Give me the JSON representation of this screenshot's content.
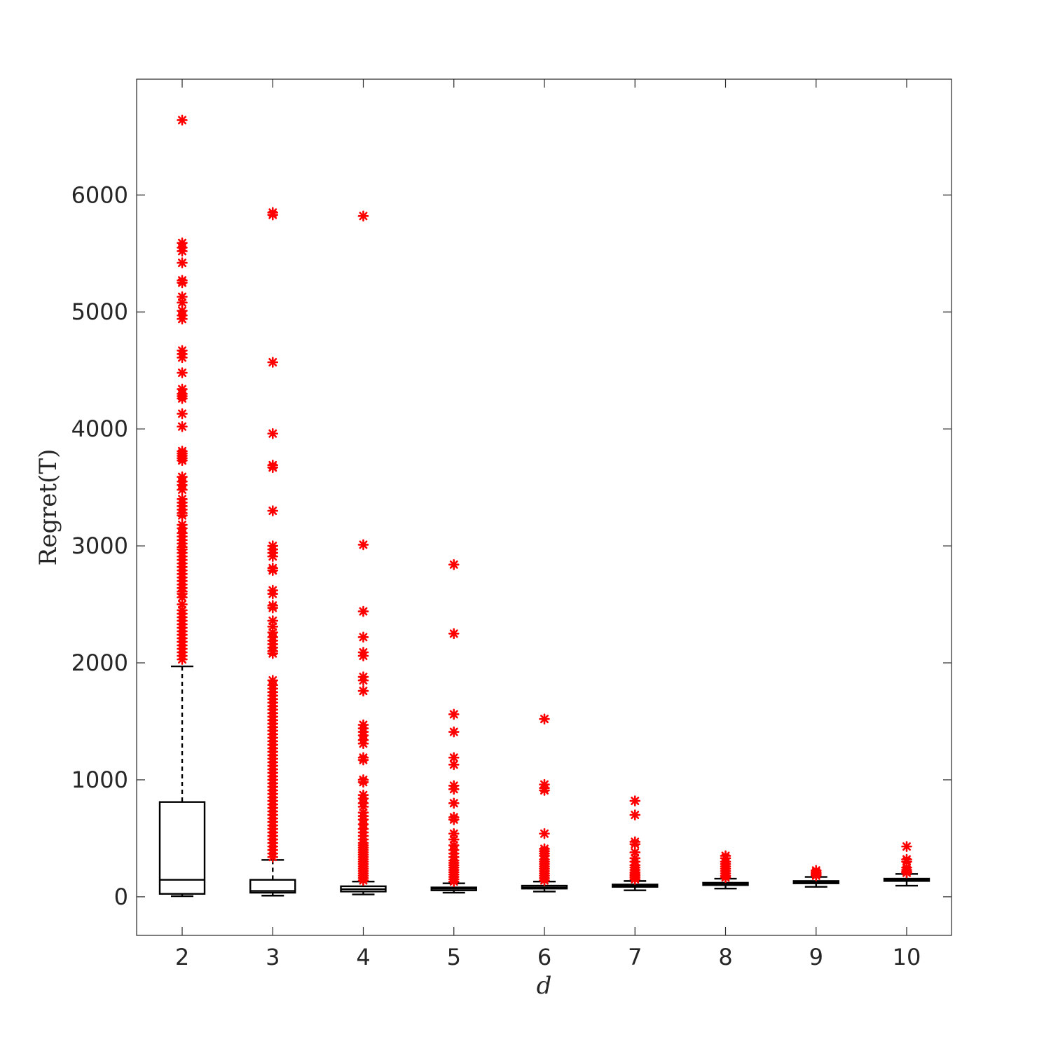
{
  "chart_data": {
    "type": "box",
    "xlabel": "d",
    "ylabel": "Regret(T)",
    "categories": [
      "2",
      "3",
      "4",
      "5",
      "6",
      "7",
      "8",
      "9",
      "10"
    ],
    "ylim": [
      -330,
      6990
    ],
    "yticks": [
      0,
      1000,
      2000,
      3000,
      4000,
      5000,
      6000
    ],
    "ytick_labels": [
      "0",
      "1000",
      "2000",
      "3000",
      "4000",
      "5000",
      "6000"
    ],
    "grid": false,
    "legend": "none",
    "box_color": "#000000",
    "outlier_color": "#ff0000",
    "outlier_marker": "asterisk",
    "boxes": [
      {
        "category": "2",
        "whisker_low": 5,
        "q1": 25,
        "median": 145,
        "q3": 810,
        "whisker_high": 1970,
        "outliers": [
          6640,
          5590,
          5550,
          5520,
          5420,
          5270,
          5250,
          5130,
          5080,
          5010,
          4970,
          4940,
          4670,
          4640,
          4610,
          4480,
          4340,
          4300,
          4280,
          4260,
          4130,
          4020,
          3810,
          3790,
          3770,
          3750,
          3730,
          3590,
          3550,
          3520,
          3480,
          3400,
          3370,
          3340,
          3310,
          3280,
          3260,
          3180,
          3150,
          3110,
          3080,
          3050,
          3020,
          2990,
          2970,
          2940,
          2910,
          2880,
          2850,
          2820,
          2790,
          2760,
          2730,
          2700,
          2670,
          2640,
          2610,
          2590,
          2560,
          2500,
          2450,
          2420,
          2390,
          2360,
          2330,
          2300,
          2270,
          2240,
          2210,
          2180,
          2150,
          2120,
          2090,
          2060,
          2030
        ]
      },
      {
        "category": "3",
        "whisker_low": 10,
        "q1": 35,
        "median": 50,
        "q3": 145,
        "whisker_high": 315,
        "outliers": [
          5850,
          5830,
          4570,
          3960,
          3690,
          3670,
          3300,
          3000,
          2970,
          2940,
          2910,
          2810,
          2790,
          2620,
          2590,
          2490,
          2470,
          2360,
          2310,
          2260,
          2220,
          2190,
          2160,
          2130,
          2100,
          2080,
          1850,
          1810,
          1780,
          1750,
          1720,
          1690,
          1660,
          1630,
          1600,
          1570,
          1540,
          1510,
          1480,
          1450,
          1420,
          1390,
          1360,
          1330,
          1300,
          1270,
          1240,
          1210,
          1180,
          1150,
          1120,
          1090,
          1060,
          1030,
          1000,
          970,
          940,
          910,
          880,
          850,
          820,
          790,
          760,
          730,
          700,
          670,
          640,
          610,
          580,
          550,
          520,
          490,
          460,
          430,
          400,
          370,
          340
        ]
      },
      {
        "category": "4",
        "whisker_low": 20,
        "q1": 45,
        "median": 65,
        "q3": 90,
        "whisker_high": 130,
        "outliers": [
          5820,
          3010,
          2440,
          2220,
          2090,
          2060,
          1880,
          1850,
          1760,
          1470,
          1440,
          1410,
          1380,
          1340,
          1310,
          1190,
          1170,
          1000,
          980,
          870,
          840,
          800,
          770,
          720,
          690,
          660,
          620,
          580,
          550,
          520,
          490,
          460,
          440,
          420,
          400,
          380,
          360,
          340,
          320,
          300,
          280,
          260,
          240,
          220,
          200,
          180,
          160,
          140
        ]
      },
      {
        "category": "5",
        "whisker_low": 35,
        "q1": 55,
        "median": 70,
        "q3": 80,
        "whisker_high": 115,
        "outliers": [
          2840,
          2250,
          1560,
          1410,
          1190,
          1130,
          950,
          920,
          800,
          680,
          660,
          540,
          490,
          440,
          400,
          370,
          340,
          310,
          290,
          270,
          250,
          230,
          210,
          190,
          170,
          150,
          130
        ]
      },
      {
        "category": "6",
        "whisker_low": 45,
        "q1": 70,
        "median": 80,
        "q3": 95,
        "whisker_high": 130,
        "outliers": [
          1520,
          960,
          930,
          910,
          540,
          410,
          390,
          370,
          350,
          320,
          300,
          280,
          260,
          240,
          220,
          200,
          180,
          160,
          140
        ]
      },
      {
        "category": "7",
        "whisker_low": 55,
        "q1": 85,
        "median": 95,
        "q3": 105,
        "whisker_high": 135,
        "outliers": [
          820,
          700,
          470,
          450,
          380,
          330,
          300,
          270,
          250,
          230,
          210,
          195,
          180,
          165,
          150
        ]
      },
      {
        "category": "8",
        "whisker_low": 70,
        "q1": 100,
        "median": 110,
        "q3": 120,
        "whisker_high": 155,
        "outliers": [
          350,
          330,
          300,
          280,
          260,
          240,
          220,
          200,
          180,
          165
        ]
      },
      {
        "category": "9",
        "whisker_low": 85,
        "q1": 115,
        "median": 125,
        "q3": 135,
        "whisker_high": 170,
        "outliers": [
          225,
          210,
          200,
          190,
          180
        ]
      },
      {
        "category": "10",
        "whisker_low": 95,
        "q1": 135,
        "median": 145,
        "q3": 155,
        "whisker_high": 195,
        "outliers": [
          430,
          320,
          300,
          250,
          230,
          215,
          205
        ]
      }
    ]
  }
}
